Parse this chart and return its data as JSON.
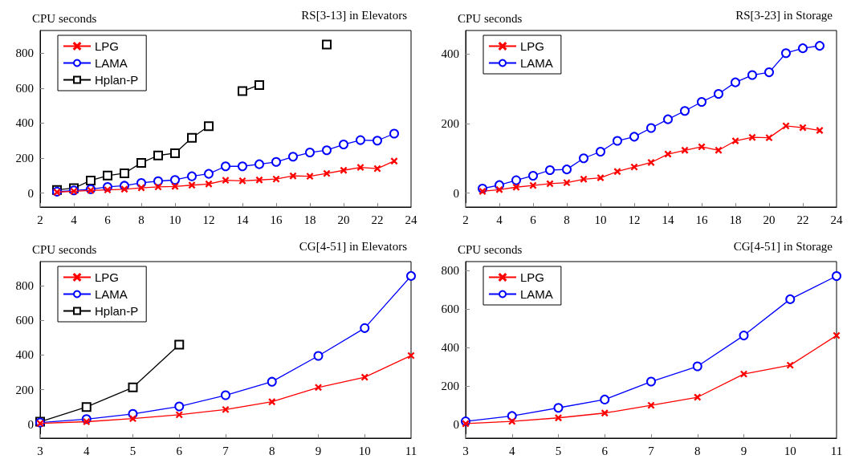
{
  "chart_data": [
    {
      "type": "line",
      "title": "RS[3-13] in Elevators",
      "ylabel": "CPU seconds",
      "x": [
        3,
        4,
        5,
        6,
        7,
        8,
        9,
        10,
        11,
        12,
        13,
        14,
        15,
        16,
        17,
        18,
        19,
        20,
        21,
        22,
        23
      ],
      "xlim": [
        2,
        24
      ],
      "xticks": [
        2,
        4,
        6,
        8,
        10,
        12,
        14,
        16,
        18,
        20,
        22,
        24
      ],
      "ylim": [
        -80,
        930
      ],
      "yticks": [
        0,
        200,
        400,
        600,
        800
      ],
      "grid": false,
      "legend": "top left",
      "line_style": "solid",
      "series": [
        {
          "name": "LPG",
          "color": "#ff0000",
          "marker": "cross",
          "values": [
            5,
            10,
            15,
            18,
            22,
            30,
            35,
            38,
            45,
            52,
            73,
            70,
            75,
            80,
            98,
            96,
            112,
            130,
            147,
            140,
            183
          ]
        },
        {
          "name": "LAMA",
          "color": "#0000ff",
          "marker": "circle",
          "values": [
            8,
            15,
            22,
            35,
            42,
            58,
            68,
            75,
            96,
            110,
            153,
            153,
            165,
            178,
            208,
            232,
            245,
            278,
            303,
            300,
            340
          ]
        },
        {
          "name": "Hplan-P",
          "color": "#000000",
          "marker": "square",
          "x": [
            3,
            4,
            5,
            6,
            7,
            8,
            9,
            10,
            11,
            12,
            13,
            14,
            15,
            16,
            17,
            18,
            19
          ],
          "values": [
            18,
            28,
            72,
            100,
            113,
            173,
            215,
            228,
            316,
            383,
            null,
            583,
            618,
            null,
            null,
            null,
            850
          ]
        }
      ]
    },
    {
      "type": "line",
      "title": "RS[3-23] in Storage",
      "ylabel": "CPU seconds",
      "x": [
        3,
        4,
        5,
        6,
        7,
        8,
        9,
        10,
        11,
        12,
        13,
        14,
        15,
        16,
        17,
        18,
        19,
        20,
        21,
        22,
        23
      ],
      "xlim": [
        2,
        24
      ],
      "xticks": [
        2,
        4,
        6,
        8,
        10,
        12,
        14,
        16,
        18,
        20,
        22,
        24
      ],
      "ylim": [
        -40,
        467
      ],
      "yticks": [
        0,
        200,
        400
      ],
      "grid": false,
      "legend": "top left",
      "line_style": "solid",
      "series": [
        {
          "name": "LPG",
          "color": "#ff0000",
          "marker": "cross",
          "values": [
            5,
            10,
            17,
            22,
            27,
            30,
            40,
            44,
            62,
            75,
            88,
            112,
            123,
            133,
            123,
            150,
            160,
            159,
            193,
            188,
            180
          ]
        },
        {
          "name": "LAMA",
          "color": "#0000ff",
          "marker": "circle",
          "values": [
            13,
            23,
            37,
            50,
            66,
            68,
            100,
            119,
            150,
            162,
            187,
            212,
            236,
            262,
            285,
            318,
            339,
            347,
            402,
            416,
            423
          ]
        }
      ]
    },
    {
      "type": "line",
      "title": "CG[4-51] in Elevators",
      "ylabel": "CPU seconds",
      "x": [
        3,
        4,
        5,
        6,
        7,
        8,
        9,
        10,
        11
      ],
      "xlim": [
        3,
        11
      ],
      "xticks": [
        3,
        4,
        5,
        6,
        7,
        8,
        9,
        10,
        11
      ],
      "ylim": [
        -80,
        940
      ],
      "yticks": [
        0,
        200,
        400,
        600,
        800
      ],
      "grid": false,
      "legend": "top left",
      "line_style": "solid",
      "series": [
        {
          "name": "LPG",
          "color": "#ff0000",
          "marker": "cross",
          "values": [
            5,
            15,
            33,
            55,
            85,
            130,
            213,
            272,
            397
          ]
        },
        {
          "name": "LAMA",
          "color": "#0000ff",
          "marker": "circle",
          "values": [
            10,
            30,
            60,
            103,
            168,
            246,
            395,
            556,
            857
          ]
        },
        {
          "name": "Hplan-P",
          "color": "#000000",
          "marker": "square",
          "x": [
            3,
            4,
            5,
            6
          ],
          "values": [
            15,
            100,
            213,
            460
          ]
        }
      ]
    },
    {
      "type": "line",
      "title": "CG[4-51] in Storage",
      "ylabel": "CPU seconds",
      "x": [
        3,
        4,
        5,
        6,
        7,
        8,
        9,
        10,
        11
      ],
      "xlim": [
        3,
        11
      ],
      "xticks": [
        3,
        4,
        5,
        6,
        7,
        8,
        9,
        10,
        11
      ],
      "ylim": [
        -70,
        845
      ],
      "yticks": [
        0,
        200,
        400,
        600,
        800
      ],
      "grid": false,
      "legend": "top left",
      "line_style": "solid",
      "series": [
        {
          "name": "LPG",
          "color": "#ff0000",
          "marker": "cross",
          "values": [
            5,
            17,
            35,
            60,
            100,
            142,
            262,
            308,
            462
          ]
        },
        {
          "name": "LAMA",
          "color": "#0000ff",
          "marker": "circle",
          "values": [
            17,
            45,
            87,
            130,
            223,
            302,
            462,
            650,
            770
          ]
        }
      ]
    }
  ]
}
